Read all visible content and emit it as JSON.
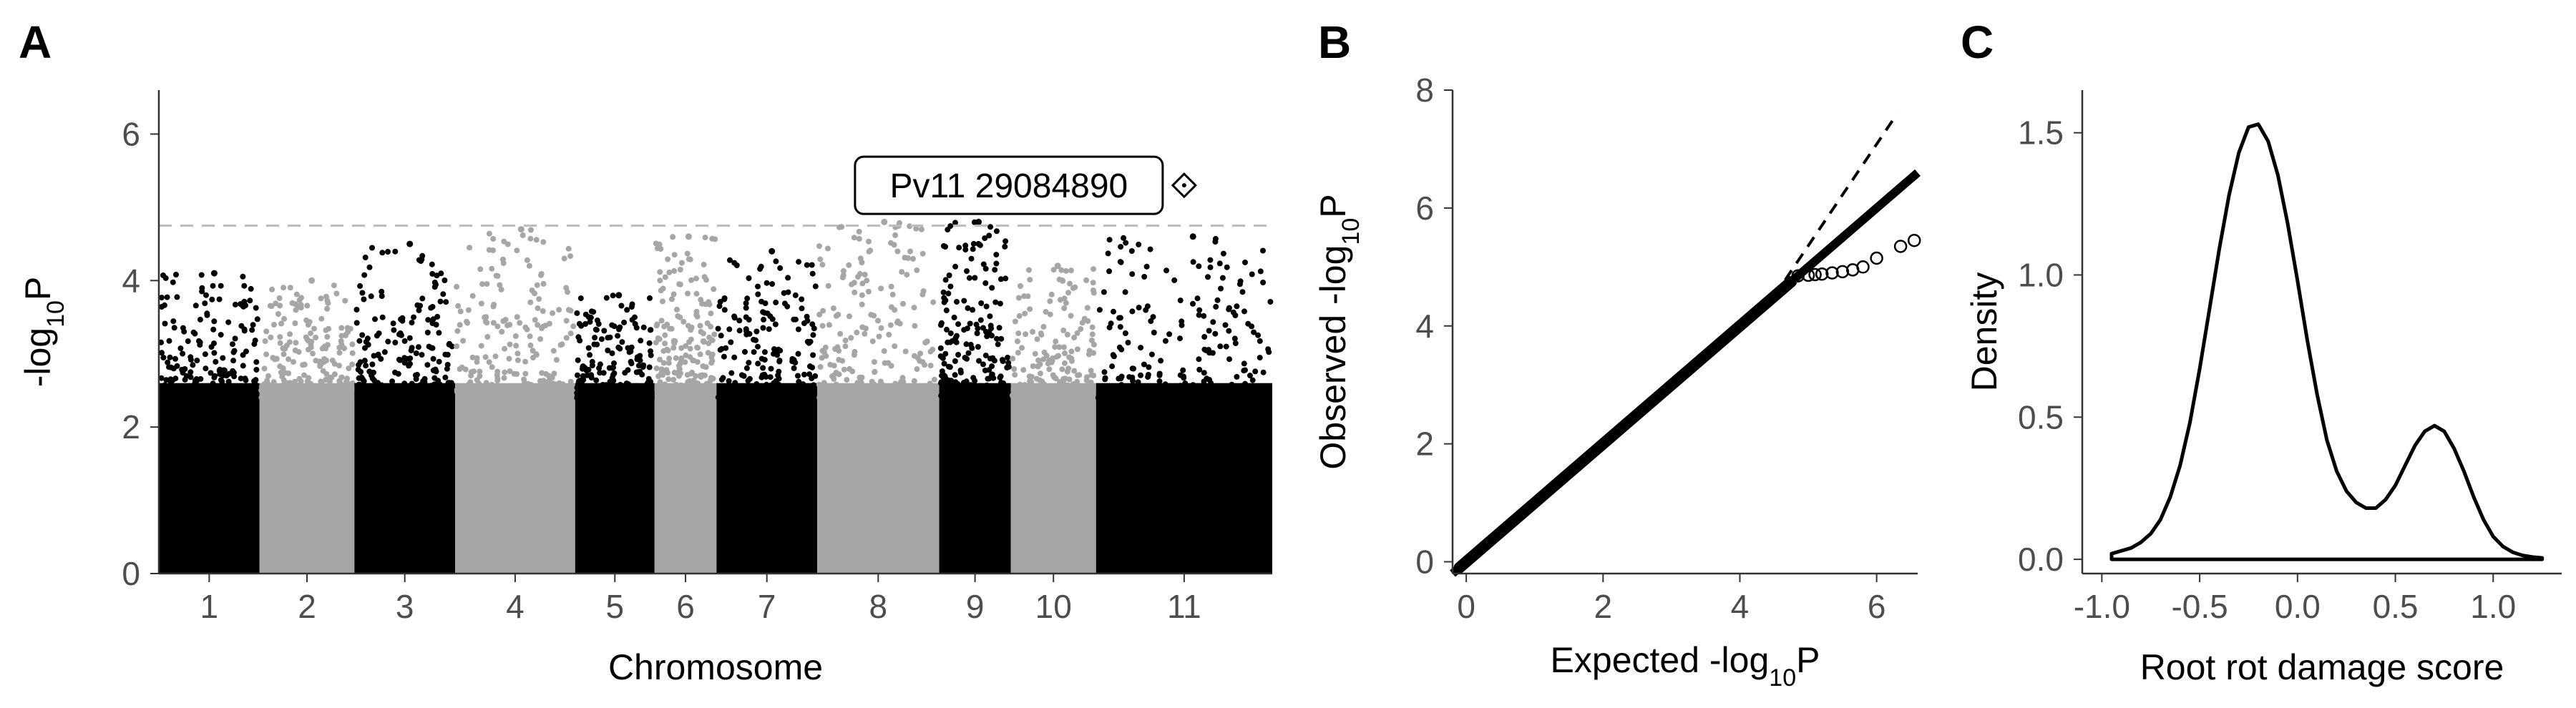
{
  "panels": {
    "a": "A",
    "b": "B",
    "c": "C"
  },
  "colors": {
    "dark": "#000000",
    "light": "#a6a6a6",
    "threshold": "#bdbdbd"
  },
  "chart_data": [
    {
      "type": "scatter",
      "subtype": "manhattan",
      "xlabel": "Chromosome",
      "ylabel": {
        "main": "-log",
        "sub": "10",
        "post": "P"
      },
      "ylim": [
        0,
        6.6
      ],
      "yticks": [
        0,
        2,
        4,
        6
      ],
      "chromosomes": [
        "1",
        "2",
        "3",
        "4",
        "5",
        "6",
        "7",
        "8",
        "9",
        "10",
        "11"
      ],
      "chromosome_colors": [
        "dark",
        "light",
        "dark",
        "light",
        "dark",
        "light",
        "dark",
        "light",
        "dark",
        "light",
        "dark"
      ],
      "chromosome_relative_lengths": [
        52,
        49,
        52,
        62,
        41,
        32,
        52,
        63,
        37,
        44,
        91
      ],
      "chromosome_peak_values": [
        4.1,
        4.0,
        4.5,
        4.7,
        3.8,
        4.6,
        4.4,
        4.8,
        4.8,
        4.2,
        4.6
      ],
      "threshold": 4.75,
      "grid": false,
      "annotation": {
        "label": "Pv11 29084890",
        "chromosome": "11",
        "y": 5.3
      }
    },
    {
      "type": "scatter",
      "subtype": "qq",
      "xlabel": {
        "main": "Expected -log",
        "sub": "10",
        "post": "P"
      },
      "ylabel": {
        "main": "Observed -log",
        "sub": "10",
        "post": "P"
      },
      "xlim": [
        -0.2,
        6.6
      ],
      "ylim": [
        -0.2,
        8
      ],
      "xticks": [
        0,
        2,
        4,
        6
      ],
      "yticks": [
        0,
        2,
        4,
        6,
        8
      ],
      "dense_points_to": 4.75,
      "tail_points": [
        {
          "x": 4.85,
          "y": 4.85
        },
        {
          "x": 5.0,
          "y": 4.86
        },
        {
          "x": 5.1,
          "y": 4.87
        },
        {
          "x": 5.2,
          "y": 4.88
        },
        {
          "x": 5.35,
          "y": 4.9
        },
        {
          "x": 5.5,
          "y": 4.92
        },
        {
          "x": 5.65,
          "y": 4.95
        },
        {
          "x": 5.8,
          "y": 5.0
        },
        {
          "x": 6.0,
          "y": 5.15
        },
        {
          "x": 6.35,
          "y": 5.35
        },
        {
          "x": 6.55,
          "y": 5.45
        }
      ],
      "reference_line": {
        "from": [
          4.5,
          4.5
        ],
        "to": [
          6.3,
          7.6
        ]
      },
      "fitted_line": {
        "from": [
          -0.2,
          -0.2
        ],
        "to": [
          6.6,
          6.6
        ]
      },
      "grid": false
    },
    {
      "type": "line",
      "subtype": "density",
      "xlabel": "Root rot damage score",
      "ylabel": "Density",
      "xlim": [
        -1.1,
        1.35
      ],
      "ylim": [
        -0.05,
        1.65
      ],
      "xticks": [
        -1.0,
        -0.5,
        0.0,
        0.5,
        1.0
      ],
      "xtick_labels": [
        "-1.0",
        "-0.5",
        "0.0",
        "0.5",
        "1.0"
      ],
      "yticks": [
        0,
        0.5,
        1.0,
        1.5
      ],
      "ytick_labels": [
        "0.0",
        "0.5",
        "1.0",
        "1.5"
      ],
      "x": [
        -0.95,
        -0.9,
        -0.85,
        -0.8,
        -0.75,
        -0.7,
        -0.65,
        -0.6,
        -0.55,
        -0.5,
        -0.45,
        -0.4,
        -0.35,
        -0.3,
        -0.25,
        -0.2,
        -0.15,
        -0.1,
        -0.05,
        0.0,
        0.05,
        0.1,
        0.15,
        0.2,
        0.25,
        0.3,
        0.35,
        0.4,
        0.45,
        0.5,
        0.55,
        0.6,
        0.65,
        0.7,
        0.75,
        0.8,
        0.85,
        0.9,
        0.95,
        1.0,
        1.05,
        1.1,
        1.15,
        1.2,
        1.25
      ],
      "y": [
        0.02,
        0.03,
        0.04,
        0.06,
        0.09,
        0.14,
        0.22,
        0.33,
        0.48,
        0.67,
        0.88,
        1.09,
        1.28,
        1.43,
        1.52,
        1.53,
        1.47,
        1.35,
        1.18,
        0.98,
        0.77,
        0.58,
        0.42,
        0.31,
        0.24,
        0.2,
        0.18,
        0.18,
        0.21,
        0.26,
        0.33,
        0.4,
        0.45,
        0.47,
        0.45,
        0.39,
        0.31,
        0.22,
        0.14,
        0.08,
        0.045,
        0.025,
        0.014,
        0.008,
        0.005
      ],
      "baseline": 0,
      "grid": false
    }
  ]
}
